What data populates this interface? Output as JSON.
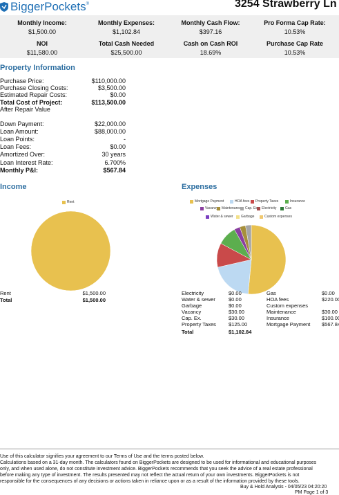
{
  "header": {
    "brand": "BiggerPockets",
    "address": "3254 Strawberry Ln"
  },
  "metrics": [
    {
      "label": "Monthly Income:",
      "value": "$1,500.00"
    },
    {
      "label": "Monthly Expenses:",
      "value": "$1,102.84"
    },
    {
      "label": "Monthly Cash Flow:",
      "value": "$397.16"
    },
    {
      "label": "Pro Forma Cap Rate:",
      "value": "10.53%"
    },
    {
      "label": "NOI",
      "value": "$11,580.00"
    },
    {
      "label": "Total Cash Needed",
      "value": "$25,500.00"
    },
    {
      "label": "Cash on Cash ROI",
      "value": "18.69%"
    },
    {
      "label": "Purchase Cap Rate",
      "value": "10.53%"
    }
  ],
  "property": {
    "title": "Property Information",
    "rows": [
      {
        "label": "Purchase Price:",
        "value": "$110,000.00"
      },
      {
        "label": "Purchase Closing Costs:",
        "value": "$3,500.00"
      },
      {
        "label": "Estimated Repair Costs:",
        "value": "$0.00"
      },
      {
        "label": "Total Cost of Project:",
        "value": "$113,500.00"
      },
      {
        "label": "After Repair Value",
        "value": ""
      },
      {
        "label": "Down Payment:",
        "value": "$22,000.00"
      },
      {
        "label": "Loan Amount:",
        "value": "$88,000.00"
      },
      {
        "label": "Loan Points:",
        "value": "-"
      },
      {
        "label": "Loan Fees:",
        "value": "$0.00"
      },
      {
        "label": "Amortized Over:",
        "value": "30 years"
      },
      {
        "label": "Loan Interest Rate:",
        "value": "6.700%"
      },
      {
        "label": "Monthly P&I:",
        "value": "$567.84"
      }
    ]
  },
  "income": {
    "title": "Income",
    "rows": [
      {
        "label": "Rent",
        "value": "$1,500.00"
      },
      {
        "label": "Total",
        "value": "$1,500.00"
      }
    ]
  },
  "expenses": {
    "title": "Expenses",
    "left_rows": [
      {
        "label": "Electricity",
        "value": "$0.00"
      },
      {
        "label": "Water & sewer",
        "value": "$0.00"
      },
      {
        "label": "Garbage",
        "value": "$0.00"
      },
      {
        "label": "Vacancy",
        "value": "$30.00"
      },
      {
        "label": "Cap. Ex.",
        "value": "$30.00"
      },
      {
        "label": "Property Taxes",
        "value": "$125.00"
      },
      {
        "label": "Total",
        "value": "$1,102.84"
      }
    ],
    "right_rows": [
      {
        "label": "Gas",
        "value": "$0.00"
      },
      {
        "label": "HOA fees",
        "value": "$220.00"
      },
      {
        "label": "Custom expenses",
        "value": ""
      },
      {
        "label": "Maintenance",
        "value": "$30.00"
      },
      {
        "label": "Insurance",
        "value": "$100.00"
      },
      {
        "label": "Mortgage Payment",
        "value": "$567.84"
      }
    ]
  },
  "chart_data": [
    {
      "type": "pie",
      "labels": [
        "Rent"
      ],
      "values": [
        1500
      ],
      "colors": [
        "#e8c14f"
      ]
    },
    {
      "type": "pie",
      "labels": [
        "Mortgage Payment",
        "HOA fees",
        "Property Taxes",
        "Insurance",
        "Vacancy",
        "Maintenance",
        "Cap. Ex.",
        "Electricity",
        "Gas",
        "Water & sewer",
        "Garbage",
        "Custom expenses"
      ],
      "values": [
        567.84,
        220,
        125,
        100,
        30,
        30,
        30,
        0,
        0,
        0,
        0,
        0
      ],
      "colors": [
        "#e8c14f",
        "#bcd9f2",
        "#c94a4a",
        "#5cae4e",
        "#8a3fa0",
        "#a68f3a",
        "#a5a5a5",
        "#a64d4d",
        "#2f7a3a",
        "#7a3fc0",
        "#f2e08a",
        "#f0c870"
      ]
    }
  ],
  "footer": {
    "terms": "Use of this calculator signifies your agreement to our Terms of Use and the terms posted below.",
    "line1": "Calculations based on a 31-day month. The calculators found on BiggerPockets are designed to be used for informational and educational purposes",
    "line2": "only, and when used alone, do not constitute investment advice. BiggerPockets recommends that you seek the advice of a real estate professional",
    "line3": "before making any type of investment. The results presented may not reflect the actual return of your own investments. BiggerPockets is not",
    "line4": "responsible for the consequences of any decisions or actions taken in reliance upon or as a result of the information provided by these tools.",
    "stamp": "Buy & Hold Analysis - 04/05/23 04:20:20",
    "page": "PM Page 1 of 3"
  }
}
